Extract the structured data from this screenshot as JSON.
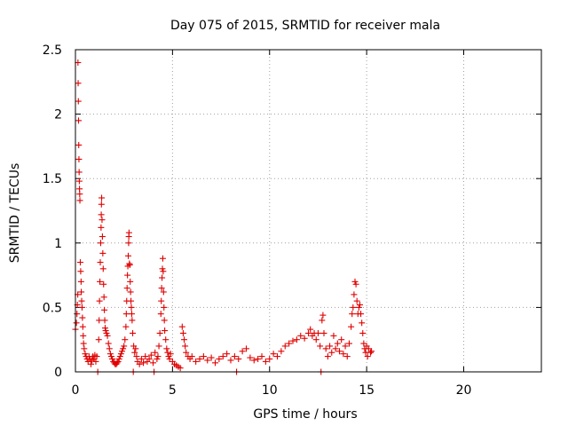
{
  "chart_data": {
    "type": "scatter",
    "title": "Day 075 of 2015, SRMTID for receiver mala",
    "xlabel": "GPS time / hours",
    "ylabel": "SRMTID / TECUs",
    "xlim": [
      0,
      24
    ],
    "ylim": [
      0,
      2.5
    ],
    "xticks": [
      0,
      5,
      10,
      15,
      20
    ],
    "xtick_labels": [
      "0",
      "5",
      "10",
      "15",
      "20"
    ],
    "yticks": [
      0,
      0.5,
      1,
      1.5,
      2,
      2.5
    ],
    "ytick_labels": [
      "0",
      "0.5",
      "1",
      "1.5",
      "2",
      "2.5"
    ],
    "grid": true,
    "marker": "plus",
    "color": "#e00000",
    "series": [
      {
        "points": [
          [
            0.0,
            0.33
          ],
          [
            0.05,
            0.38
          ],
          [
            0.08,
            0.45
          ],
          [
            0.1,
            0.52
          ],
          [
            0.12,
            0.6
          ],
          [
            0.13,
            2.4
          ],
          [
            0.14,
            2.24
          ],
          [
            0.15,
            2.1
          ],
          [
            0.16,
            1.95
          ],
          [
            0.17,
            1.76
          ],
          [
            0.18,
            1.65
          ],
          [
            0.19,
            1.55
          ],
          [
            0.2,
            1.48
          ],
          [
            0.21,
            1.42
          ],
          [
            0.22,
            1.38
          ],
          [
            0.23,
            1.33
          ],
          [
            0.25,
            0.85
          ],
          [
            0.27,
            0.78
          ],
          [
            0.29,
            0.7
          ],
          [
            0.3,
            0.62
          ],
          [
            0.32,
            0.55
          ],
          [
            0.34,
            0.5
          ],
          [
            0.36,
            0.42
          ],
          [
            0.38,
            0.35
          ],
          [
            0.4,
            0.28
          ],
          [
            0.42,
            0.22
          ],
          [
            0.45,
            0.18
          ],
          [
            0.5,
            0.14
          ],
          [
            0.55,
            0.12
          ],
          [
            0.6,
            0.1
          ],
          [
            0.65,
            0.08
          ],
          [
            0.7,
            0.12
          ],
          [
            0.75,
            0.1
          ],
          [
            0.8,
            0.06
          ],
          [
            0.85,
            0.09
          ],
          [
            0.9,
            0.12
          ],
          [
            0.95,
            0.1
          ],
          [
            1.0,
            0.13
          ],
          [
            1.05,
            0.08
          ],
          [
            1.1,
            0.12
          ],
          [
            1.15,
            0.0
          ],
          [
            1.2,
            0.25
          ],
          [
            1.22,
            0.4
          ],
          [
            1.24,
            0.55
          ],
          [
            1.26,
            0.7
          ],
          [
            1.28,
            0.85
          ],
          [
            1.3,
            1.0
          ],
          [
            1.32,
            1.12
          ],
          [
            1.33,
            1.22
          ],
          [
            1.34,
            1.3
          ],
          [
            1.35,
            1.35
          ],
          [
            1.37,
            1.18
          ],
          [
            1.39,
            1.05
          ],
          [
            1.41,
            0.92
          ],
          [
            1.43,
            0.8
          ],
          [
            1.45,
            0.68
          ],
          [
            1.47,
            0.58
          ],
          [
            1.49,
            0.48
          ],
          [
            1.51,
            0.4
          ],
          [
            1.53,
            0.34
          ],
          [
            1.56,
            0.32
          ],
          [
            1.6,
            0.3
          ],
          [
            1.65,
            0.28
          ],
          [
            1.7,
            0.22
          ],
          [
            1.75,
            0.18
          ],
          [
            1.8,
            0.14
          ],
          [
            1.85,
            0.12
          ],
          [
            1.9,
            0.1
          ],
          [
            1.95,
            0.08
          ],
          [
            2.0,
            0.07
          ],
          [
            2.05,
            0.06
          ],
          [
            2.1,
            0.06
          ],
          [
            2.15,
            0.07
          ],
          [
            2.2,
            0.08
          ],
          [
            2.25,
            0.1
          ],
          [
            2.3,
            0.12
          ],
          [
            2.35,
            0.14
          ],
          [
            2.4,
            0.16
          ],
          [
            2.45,
            0.18
          ],
          [
            2.5,
            0.2
          ],
          [
            2.55,
            0.25
          ],
          [
            2.6,
            0.35
          ],
          [
            2.62,
            0.45
          ],
          [
            2.64,
            0.55
          ],
          [
            2.66,
            0.65
          ],
          [
            2.68,
            0.75
          ],
          [
            2.7,
            0.82
          ],
          [
            2.72,
            0.9
          ],
          [
            2.74,
            1.0
          ],
          [
            2.75,
            1.05
          ],
          [
            2.76,
            1.08
          ],
          [
            2.78,
            0.84
          ],
          [
            2.8,
            0.83
          ],
          [
            2.82,
            0.7
          ],
          [
            2.84,
            0.62
          ],
          [
            2.86,
            0.55
          ],
          [
            2.88,
            0.5
          ],
          [
            2.9,
            0.45
          ],
          [
            2.92,
            0.4
          ],
          [
            2.95,
            0.3
          ],
          [
            2.98,
            0.0
          ],
          [
            3.0,
            0.2
          ],
          [
            3.05,
            0.15
          ],
          [
            3.1,
            0.18
          ],
          [
            3.15,
            0.12
          ],
          [
            3.2,
            0.08
          ],
          [
            3.3,
            0.06
          ],
          [
            3.4,
            0.1
          ],
          [
            3.5,
            0.07
          ],
          [
            3.6,
            0.12
          ],
          [
            3.7,
            0.08
          ],
          [
            3.8,
            0.1
          ],
          [
            3.9,
            0.13
          ],
          [
            4.0,
            0.07
          ],
          [
            4.05,
            0.0
          ],
          [
            4.1,
            0.15
          ],
          [
            4.2,
            0.1
          ],
          [
            4.25,
            0.12
          ],
          [
            4.3,
            0.2
          ],
          [
            4.35,
            0.3
          ],
          [
            4.4,
            0.45
          ],
          [
            4.42,
            0.55
          ],
          [
            4.44,
            0.65
          ],
          [
            4.46,
            0.73
          ],
          [
            4.48,
            0.8
          ],
          [
            4.5,
            0.88
          ],
          [
            4.52,
            0.78
          ],
          [
            4.54,
            0.62
          ],
          [
            4.56,
            0.5
          ],
          [
            4.58,
            0.4
          ],
          [
            4.6,
            0.32
          ],
          [
            4.65,
            0.25
          ],
          [
            4.7,
            0.18
          ],
          [
            4.75,
            0.15
          ],
          [
            4.8,
            0.12
          ],
          [
            4.85,
            0.1
          ],
          [
            4.9,
            0.14
          ],
          [
            5.0,
            0.08
          ],
          [
            5.1,
            0.06
          ],
          [
            5.2,
            0.05
          ],
          [
            5.3,
            0.04
          ],
          [
            5.4,
            0.03
          ],
          [
            5.5,
            0.35
          ],
          [
            5.55,
            0.3
          ],
          [
            5.6,
            0.25
          ],
          [
            5.65,
            0.2
          ],
          [
            5.7,
            0.15
          ],
          [
            5.8,
            0.12
          ],
          [
            5.9,
            0.1
          ],
          [
            6.0,
            0.12
          ],
          [
            6.2,
            0.08
          ],
          [
            6.4,
            0.1
          ],
          [
            6.6,
            0.12
          ],
          [
            6.8,
            0.09
          ],
          [
            7.0,
            0.11
          ],
          [
            7.2,
            0.07
          ],
          [
            7.4,
            0.1
          ],
          [
            7.6,
            0.12
          ],
          [
            7.8,
            0.14
          ],
          [
            8.0,
            0.09
          ],
          [
            8.2,
            0.12
          ],
          [
            8.3,
            0.0
          ],
          [
            8.4,
            0.1
          ],
          [
            8.6,
            0.16
          ],
          [
            8.8,
            0.18
          ],
          [
            9.0,
            0.11
          ],
          [
            9.2,
            0.09
          ],
          [
            9.4,
            0.1
          ],
          [
            9.6,
            0.12
          ],
          [
            9.8,
            0.08
          ],
          [
            10.0,
            0.1
          ],
          [
            10.2,
            0.14
          ],
          [
            10.4,
            0.12
          ],
          [
            10.6,
            0.16
          ],
          [
            10.8,
            0.2
          ],
          [
            11.0,
            0.22
          ],
          [
            11.2,
            0.24
          ],
          [
            11.4,
            0.25
          ],
          [
            11.6,
            0.28
          ],
          [
            11.8,
            0.26
          ],
          [
            12.0,
            0.3
          ],
          [
            12.1,
            0.33
          ],
          [
            12.2,
            0.28
          ],
          [
            12.3,
            0.3
          ],
          [
            12.4,
            0.25
          ],
          [
            12.5,
            0.3
          ],
          [
            12.6,
            0.2
          ],
          [
            12.65,
            0.0
          ],
          [
            12.7,
            0.4
          ],
          [
            12.75,
            0.44
          ],
          [
            12.8,
            0.3
          ],
          [
            12.9,
            0.18
          ],
          [
            13.0,
            0.12
          ],
          [
            13.1,
            0.2
          ],
          [
            13.2,
            0.15
          ],
          [
            13.3,
            0.28
          ],
          [
            13.4,
            0.18
          ],
          [
            13.5,
            0.22
          ],
          [
            13.6,
            0.16
          ],
          [
            13.7,
            0.25
          ],
          [
            13.8,
            0.14
          ],
          [
            13.9,
            0.2
          ],
          [
            14.0,
            0.12
          ],
          [
            14.1,
            0.22
          ],
          [
            14.2,
            0.35
          ],
          [
            14.25,
            0.45
          ],
          [
            14.3,
            0.5
          ],
          [
            14.35,
            0.6
          ],
          [
            14.4,
            0.7
          ],
          [
            14.45,
            0.68
          ],
          [
            14.5,
            0.55
          ],
          [
            14.55,
            0.45
          ],
          [
            14.6,
            0.5
          ],
          [
            14.65,
            0.52
          ],
          [
            14.7,
            0.45
          ],
          [
            14.75,
            0.38
          ],
          [
            14.8,
            0.3
          ],
          [
            14.85,
            0.22
          ],
          [
            14.9,
            0.18
          ],
          [
            14.95,
            0.15
          ],
          [
            15.0,
            0.2
          ],
          [
            15.05,
            0.12
          ],
          [
            15.1,
            0.18
          ],
          [
            15.2,
            0.15
          ],
          [
            15.25,
            0.16
          ]
        ]
      }
    ]
  }
}
